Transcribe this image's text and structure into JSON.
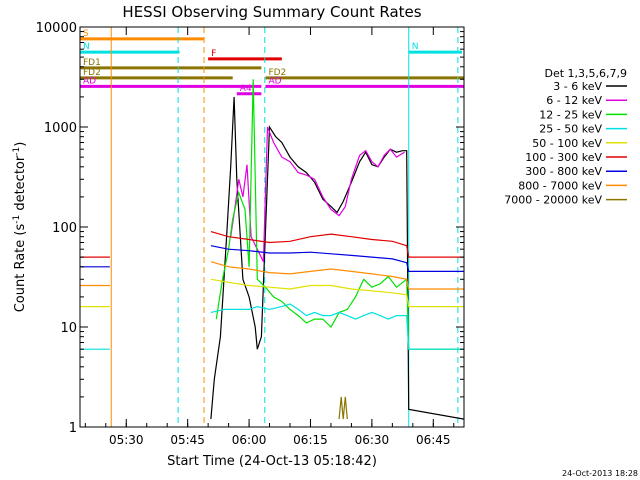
{
  "chart_data": {
    "type": "line",
    "title": "HESSI Observing Summary Count Rates",
    "xlabel": "Start Time (24-Oct-13 05:18:42)",
    "ylabel": "Count Rate (s⁻¹ detector⁻¹)",
    "ylabel_parts": {
      "base": "Count Rate (s",
      "exp1": "-1",
      "mid": " detector",
      "exp2": "-1",
      "end": ")"
    },
    "timestamp": "24-Oct-2013 18:28",
    "xlim": [
      "05:18:42",
      "06:52:30"
    ],
    "ylim": [
      1,
      10000
    ],
    "yscale": "log",
    "x_ticks": [
      "05:30",
      "05:45",
      "06:00",
      "06:15",
      "06:30",
      "06:45"
    ],
    "y_ticks": [
      {
        "value": 1,
        "label": "1"
      },
      {
        "value": 10,
        "label": "10"
      },
      {
        "value": 100,
        "label": "100"
      },
      {
        "value": 1000,
        "label": "1000"
      },
      {
        "value": 10000,
        "label": "10000"
      }
    ],
    "legend": {
      "position": "right",
      "header": "Det 1,3,5,6,7,9",
      "entries": [
        {
          "label": "3 - 6 keV",
          "color": "#000000"
        },
        {
          "label": "6 - 12 keV",
          "color": "#e100e1"
        },
        {
          "label": "12 - 25 keV",
          "color": "#00e100"
        },
        {
          "label": "25 - 50 keV",
          "color": "#00e1e1"
        },
        {
          "label": "50 - 100 keV",
          "color": "#e1e100"
        },
        {
          "label": "100 - 300 keV",
          "color": "#e10000"
        },
        {
          "label": "300 - 800 keV",
          "color": "#0000e1"
        },
        {
          "label": "800 - 7000 keV",
          "color": "#ff8c00"
        },
        {
          "label": "7000 - 20000 keV",
          "color": "#8b7500"
        }
      ]
    },
    "flags": [
      {
        "label": "S",
        "color": "#ff8c00",
        "start": "05:18:42",
        "end": "05:49:00",
        "level": 7600
      },
      {
        "label": "N",
        "color": "#00e1e1",
        "start": "05:18:42",
        "end": "05:43:00",
        "level": 5600
      },
      {
        "label": "N",
        "color": "#00e1e1",
        "start": "06:39:00",
        "end": "06:52:00",
        "level": 5600
      },
      {
        "label": "F",
        "color": "#e10000",
        "start": "05:50:00",
        "end": "06:08:00",
        "level": 4800
      },
      {
        "label": "FD1",
        "color": "#8b7500",
        "start": "05:18:42",
        "end": "06:03:00",
        "level": 3900
      },
      {
        "label": "FD2",
        "color": "#8b7500",
        "start": "05:18:42",
        "end": "05:56:00",
        "level": 3100
      },
      {
        "label": "FD2",
        "color": "#8b7500",
        "start": "06:04:00",
        "end": "06:52:30",
        "level": 3100
      },
      {
        "label": "AD",
        "color": "#e100e1",
        "start": "05:18:42",
        "end": "06:03:00",
        "level": 2550
      },
      {
        "label": "AD",
        "color": "#e100e1",
        "start": "06:04:00",
        "end": "06:52:30",
        "level": 2550
      },
      {
        "label": "A4",
        "color": "#e100e1",
        "start": "05:57:00",
        "end": "06:03:00",
        "level": 2150
      }
    ],
    "vlines": [
      {
        "time": "05:26:20",
        "color": "#ff8c00",
        "style": "solid"
      },
      {
        "time": "05:42:40",
        "color": "#00e1e1",
        "style": "dashed"
      },
      {
        "time": "05:49:00",
        "color": "#ff8c00",
        "style": "dashed"
      },
      {
        "time": "06:03:50",
        "color": "#00e1e1",
        "style": "dashed"
      },
      {
        "time": "06:39:00",
        "color": "#00e1e1",
        "style": "solid"
      },
      {
        "time": "06:51:00",
        "color": "#00e1e1",
        "style": "dashed"
      }
    ],
    "series": [
      {
        "name": "3 - 6 keV",
        "color": "#000000",
        "points": [
          [
            "05:50:40",
            1.2
          ],
          [
            "05:51:30",
            3
          ],
          [
            "05:53:00",
            8
          ],
          [
            "05:54:30",
            80
          ],
          [
            "05:55:30",
            400
          ],
          [
            "05:56:20",
            2000
          ],
          [
            "05:57:00",
            300
          ],
          [
            "05:58:30",
            30
          ],
          [
            "06:00:00",
            20
          ],
          [
            "06:01:30",
            10
          ],
          [
            "06:02:00",
            6
          ],
          [
            "06:03:00",
            8
          ],
          [
            "06:05:00",
            1000
          ],
          [
            "06:06:30",
            800
          ],
          [
            "06:08:00",
            700
          ],
          [
            "06:10:00",
            500
          ],
          [
            "06:12:00",
            400
          ],
          [
            "06:14:00",
            350
          ],
          [
            "06:16:00",
            280
          ],
          [
            "06:18:00",
            190
          ],
          [
            "06:20:00",
            160
          ],
          [
            "06:21:30",
            140
          ],
          [
            "06:23:00",
            180
          ],
          [
            "06:25:00",
            280
          ],
          [
            "06:27:00",
            450
          ],
          [
            "06:28:30",
            560
          ],
          [
            "06:30:00",
            420
          ],
          [
            "06:31:30",
            400
          ],
          [
            "06:33:00",
            500
          ],
          [
            "06:34:30",
            600
          ],
          [
            "06:36:00",
            560
          ],
          [
            "06:37:30",
            580
          ],
          [
            "06:38:30",
            580
          ],
          [
            "06:39:00",
            1.5
          ],
          [
            "06:52:30",
            1.2
          ]
        ]
      },
      {
        "name": "6 - 12 keV",
        "color": "#e100e1",
        "points": [
          [
            "05:55:30",
            80
          ],
          [
            "05:56:30",
            150
          ],
          [
            "05:57:30",
            300
          ],
          [
            "05:58:30",
            200
          ],
          [
            "05:59:30",
            420
          ],
          [
            "06:00:30",
            80
          ],
          [
            "06:02:00",
            60
          ],
          [
            "06:03:30",
            45
          ],
          [
            "06:04:30",
            1000
          ],
          [
            "06:06:00",
            700
          ],
          [
            "06:08:00",
            500
          ],
          [
            "06:10:00",
            450
          ],
          [
            "06:12:00",
            350
          ],
          [
            "06:14:00",
            330
          ],
          [
            "06:16:00",
            300
          ],
          [
            "06:18:00",
            200
          ],
          [
            "06:20:00",
            150
          ],
          [
            "06:22:00",
            130
          ],
          [
            "06:23:30",
            160
          ],
          [
            "06:25:00",
            300
          ],
          [
            "06:27:00",
            520
          ],
          [
            "06:28:30",
            580
          ],
          [
            "06:30:00",
            450
          ],
          [
            "06:31:30",
            400
          ],
          [
            "06:33:00",
            520
          ],
          [
            "06:34:30",
            600
          ],
          [
            "06:36:00",
            500
          ],
          [
            "06:38:00",
            560
          ]
        ]
      },
      {
        "name": "12 - 25 keV",
        "color": "#00e100",
        "points": [
          [
            "05:18:42",
            null
          ],
          [
            "05:52:00",
            12
          ],
          [
            "05:53:30",
            30
          ],
          [
            "05:55:00",
            60
          ],
          [
            "05:56:00",
            120
          ],
          [
            "05:57:30",
            220
          ],
          [
            "05:59:00",
            150
          ],
          [
            "06:00:00",
            40
          ],
          [
            "06:01:00",
            3000
          ],
          [
            "06:02:00",
            30
          ],
          [
            "06:04:00",
            25
          ],
          [
            "06:06:00",
            20
          ],
          [
            "06:08:00",
            18
          ],
          [
            "06:10:00",
            15
          ],
          [
            "06:12:00",
            13
          ],
          [
            "06:14:00",
            11
          ],
          [
            "06:16:00",
            12
          ],
          [
            "06:18:00",
            12
          ],
          [
            "06:20:00",
            10
          ],
          [
            "06:22:00",
            14
          ],
          [
            "06:24:00",
            15
          ],
          [
            "06:26:00",
            20
          ],
          [
            "06:28:00",
            30
          ],
          [
            "06:30:00",
            25
          ],
          [
            "06:32:00",
            27
          ],
          [
            "06:34:00",
            32
          ],
          [
            "06:36:00",
            25
          ],
          [
            "06:38:30",
            30
          ],
          [
            "06:39:00",
            6
          ],
          [
            "06:52:30",
            6
          ]
        ]
      },
      {
        "name": "25 - 50 keV",
        "color": "#00e1e1",
        "points": [
          [
            "05:18:42",
            6
          ],
          [
            "05:26:00",
            6
          ],
          [
            "05:26:20",
            null
          ],
          [
            "05:50:40",
            14
          ],
          [
            "05:54:00",
            15
          ],
          [
            "05:57:00",
            15
          ],
          [
            "06:00:00",
            15
          ],
          [
            "06:02:00",
            16
          ],
          [
            "06:05:00",
            15
          ],
          [
            "06:08:00",
            16
          ],
          [
            "06:10:00",
            17
          ],
          [
            "06:12:00",
            15
          ],
          [
            "06:14:00",
            13
          ],
          [
            "06:16:00",
            14
          ],
          [
            "06:18:00",
            13
          ],
          [
            "06:20:00",
            13
          ],
          [
            "06:22:00",
            14
          ],
          [
            "06:24:00",
            13
          ],
          [
            "06:26:00",
            12
          ],
          [
            "06:28:00",
            13
          ],
          [
            "06:30:00",
            14
          ],
          [
            "06:32:00",
            13
          ],
          [
            "06:34:00",
            12
          ],
          [
            "06:36:00",
            13
          ],
          [
            "06:38:30",
            13
          ],
          [
            "06:39:00",
            6
          ],
          [
            "06:52:30",
            6
          ]
        ]
      },
      {
        "name": "50 - 100 keV",
        "color": "#e1e100",
        "points": [
          [
            "05:18:42",
            16
          ],
          [
            "05:26:00",
            16
          ],
          [
            "05:26:20",
            null
          ],
          [
            "05:50:40",
            30
          ],
          [
            "05:55:00",
            28
          ],
          [
            "06:00:00",
            26
          ],
          [
            "06:05:00",
            25
          ],
          [
            "06:10:00",
            24
          ],
          [
            "06:15:00",
            26
          ],
          [
            "06:20:00",
            26
          ],
          [
            "06:25:00",
            24
          ],
          [
            "06:30:00",
            23
          ],
          [
            "06:35:00",
            22
          ],
          [
            "06:38:30",
            21
          ],
          [
            "06:39:00",
            16
          ],
          [
            "06:52:30",
            16
          ]
        ]
      },
      {
        "name": "100 - 300 keV",
        "color": "#e10000",
        "points": [
          [
            "05:18:42",
            50
          ],
          [
            "05:26:00",
            50
          ],
          [
            "05:26:20",
            null
          ],
          [
            "05:50:40",
            90
          ],
          [
            "05:55:00",
            80
          ],
          [
            "06:00:00",
            75
          ],
          [
            "06:05:00",
            70
          ],
          [
            "06:10:00",
            72
          ],
          [
            "06:15:00",
            80
          ],
          [
            "06:20:00",
            85
          ],
          [
            "06:25:00",
            80
          ],
          [
            "06:30:00",
            75
          ],
          [
            "06:35:00",
            72
          ],
          [
            "06:38:30",
            65
          ],
          [
            "06:39:00",
            50
          ],
          [
            "06:52:30",
            50
          ]
        ]
      },
      {
        "name": "300 - 800 keV",
        "color": "#0000e1",
        "points": [
          [
            "05:18:42",
            40
          ],
          [
            "05:26:00",
            40
          ],
          [
            "05:26:20",
            null
          ],
          [
            "05:50:40",
            65
          ],
          [
            "05:55:00",
            60
          ],
          [
            "06:00:00",
            58
          ],
          [
            "06:05:00",
            55
          ],
          [
            "06:10:00",
            55
          ],
          [
            "06:15:00",
            56
          ],
          [
            "06:20:00",
            54
          ],
          [
            "06:25:00",
            52
          ],
          [
            "06:30:00",
            50
          ],
          [
            "06:35:00",
            48
          ],
          [
            "06:38:30",
            44
          ],
          [
            "06:39:00",
            36
          ],
          [
            "06:52:30",
            36
          ]
        ]
      },
      {
        "name": "800 - 7000 keV",
        "color": "#ff8c00",
        "points": [
          [
            "05:18:42",
            26
          ],
          [
            "05:26:00",
            26
          ],
          [
            "05:26:20",
            null
          ],
          [
            "05:50:40",
            45
          ],
          [
            "05:55:00",
            40
          ],
          [
            "06:00:00",
            38
          ],
          [
            "06:05:00",
            35
          ],
          [
            "06:10:00",
            34
          ],
          [
            "06:15:00",
            36
          ],
          [
            "06:20:00",
            38
          ],
          [
            "06:25:00",
            36
          ],
          [
            "06:30:00",
            34
          ],
          [
            "06:35:00",
            32
          ],
          [
            "06:38:30",
            30
          ],
          [
            "06:39:00",
            24
          ],
          [
            "06:52:30",
            24
          ]
        ]
      },
      {
        "name": "7000 - 20000 keV",
        "color": "#8b7500",
        "points": [
          [
            "06:22:00",
            1.2
          ],
          [
            "06:22:30",
            2
          ],
          [
            "06:23:00",
            1.2
          ],
          [
            "06:23:30",
            2
          ],
          [
            "06:24:00",
            1.2
          ]
        ]
      }
    ]
  }
}
